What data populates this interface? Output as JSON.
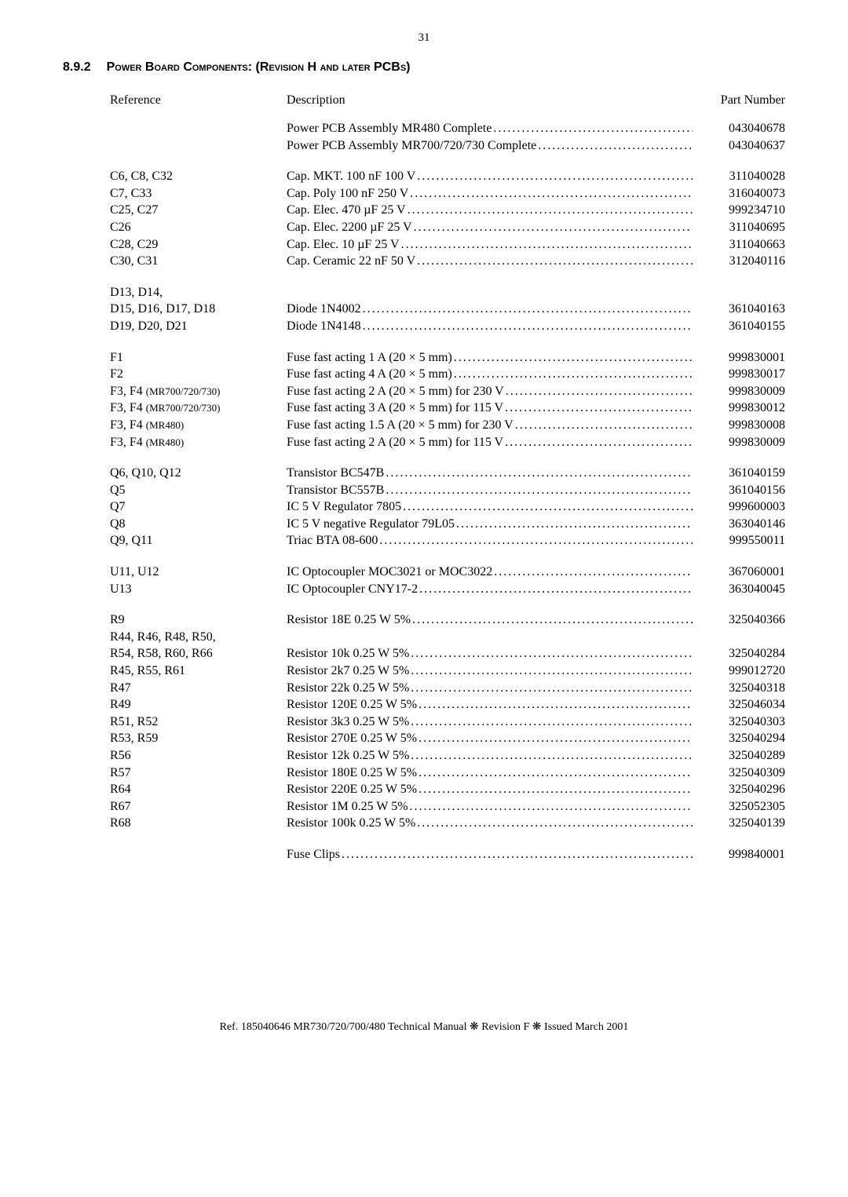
{
  "page_number": "31",
  "section_number": "8.9.2",
  "section_title": "Power Board Components: (Revision H and later PCBs)",
  "headers": {
    "reference": "Reference",
    "description": "Description",
    "part_number": "Part Number"
  },
  "groups": [
    {
      "rows": [
        {
          "ref": "",
          "desc": "Power PCB Assembly MR480 Complete",
          "pn": "043040678"
        },
        {
          "ref": "",
          "desc": "Power PCB Assembly MR700/720/730 Complete",
          "pn": "043040637"
        }
      ]
    },
    {
      "rows": [
        {
          "ref": "C6, C8, C32",
          "desc": "Cap. MKT. 100 nF 100 V",
          "pn": "311040028"
        },
        {
          "ref": "C7, C33",
          "desc": "Cap. Poly 100 nF 250 V",
          "pn": "316040073"
        },
        {
          "ref": "C25, C27",
          "desc": "Cap. Elec. 470 µF 25 V",
          "pn": "999234710"
        },
        {
          "ref": "C26",
          "desc": "Cap. Elec. 2200 µF 25 V",
          "pn": "311040695"
        },
        {
          "ref": "C28, C29",
          "desc": "Cap. Elec. 10 µF 25 V",
          "pn": "311040663"
        },
        {
          "ref": "C30, C31",
          "desc": "Cap. Ceramic 22 nF 50 V",
          "pn": "312040116"
        }
      ]
    },
    {
      "rows": [
        {
          "ref": "D13, D14,",
          "desc": "",
          "pn": ""
        },
        {
          "ref": "D15, D16, D17, D18",
          "desc": "Diode 1N4002",
          "pn": "361040163"
        },
        {
          "ref": "D19, D20, D21",
          "desc": "Diode 1N4148",
          "pn": "361040155"
        }
      ]
    },
    {
      "rows": [
        {
          "ref": "F1",
          "desc": "Fuse fast acting 1 A (20 × 5 mm)",
          "pn": "999830001"
        },
        {
          "ref": "F2",
          "desc": "Fuse fast acting 4 A (20 × 5 mm)",
          "pn": "999830017"
        },
        {
          "ref": "F3, F4 (MR700/720/730)",
          "ref_small": true,
          "desc": "Fuse fast acting 2 A (20 × 5 mm) for 230 V",
          "pn": "999830009"
        },
        {
          "ref": "F3, F4 (MR700/720/730)",
          "ref_small": true,
          "desc": "Fuse fast acting 3 A (20 × 5 mm) for 115 V",
          "pn": "999830012"
        },
        {
          "ref": "F3, F4 (MR480)",
          "ref_small": true,
          "desc": "Fuse fast acting 1.5 A (20 × 5 mm) for 230 V",
          "pn": "999830008"
        },
        {
          "ref": "F3, F4 (MR480)",
          "ref_small": true,
          "desc": "Fuse fast acting 2 A (20 × 5 mm) for 115 V",
          "pn": "999830009"
        }
      ]
    },
    {
      "rows": [
        {
          "ref": "Q6, Q10, Q12",
          "desc": "Transistor BC547B",
          "pn": "361040159"
        },
        {
          "ref": "Q5",
          "desc": "Transistor BC557B",
          "pn": "361040156"
        },
        {
          "ref": "Q7",
          "desc": "IC 5 V Regulator 7805",
          "pn": "999600003"
        },
        {
          "ref": "Q8",
          "desc": "IC 5 V negative Regulator 79L05",
          "pn": "363040146"
        },
        {
          "ref": "Q9, Q11",
          "desc": "Triac BTA 08-600",
          "pn": "999550011"
        }
      ]
    },
    {
      "rows": [
        {
          "ref": "U11, U12",
          "desc": "IC Optocoupler MOC3021 or MOC3022",
          "pn": "367060001"
        },
        {
          "ref": "U13",
          "desc": "IC Optocoupler CNY17-2",
          "pn": "363040045"
        }
      ]
    },
    {
      "rows": [
        {
          "ref": "R9",
          "desc": "Resistor 18E 0.25 W 5%",
          "pn": "325040366"
        },
        {
          "ref": "R44, R46, R48, R50,",
          "desc": "",
          "pn": ""
        },
        {
          "ref": "R54, R58, R60, R66",
          "desc": "Resistor 10k 0.25 W 5%",
          "pn": "325040284"
        },
        {
          "ref": "R45, R55, R61",
          "desc": "Resistor 2k7 0.25 W 5%",
          "pn": "999012720"
        },
        {
          "ref": "R47",
          "desc": "Resistor 22k 0.25 W 5%",
          "pn": "325040318"
        },
        {
          "ref": "R49",
          "desc": "Resistor 120E 0.25 W 5%",
          "pn": "325046034"
        },
        {
          "ref": "R51, R52",
          "desc": "Resistor 3k3 0.25 W 5%",
          "pn": "325040303"
        },
        {
          "ref": "R53, R59",
          "desc": "Resistor 270E 0.25 W 5%",
          "pn": "325040294"
        },
        {
          "ref": "R56",
          "desc": "Resistor 12k 0.25 W 5%",
          "pn": "325040289"
        },
        {
          "ref": "R57",
          "desc": "Resistor 180E 0.25 W 5%",
          "pn": "325040309"
        },
        {
          "ref": "R64",
          "desc": "Resistor 220E 0.25 W 5%",
          "pn": "325040296"
        },
        {
          "ref": "R67",
          "desc": "Resistor 1M 0.25 W 5%",
          "pn": "325052305"
        },
        {
          "ref": "R68",
          "desc": "Resistor 100k 0.25 W 5%",
          "pn": "325040139"
        }
      ]
    },
    {
      "rows": [
        {
          "ref": "",
          "desc": "Fuse Clips",
          "pn": "999840001"
        }
      ]
    }
  ],
  "footer": "Ref. 185040646 MR730/720/700/480 Technical Manual ❋ Revision F ❋ Issued March 2001"
}
